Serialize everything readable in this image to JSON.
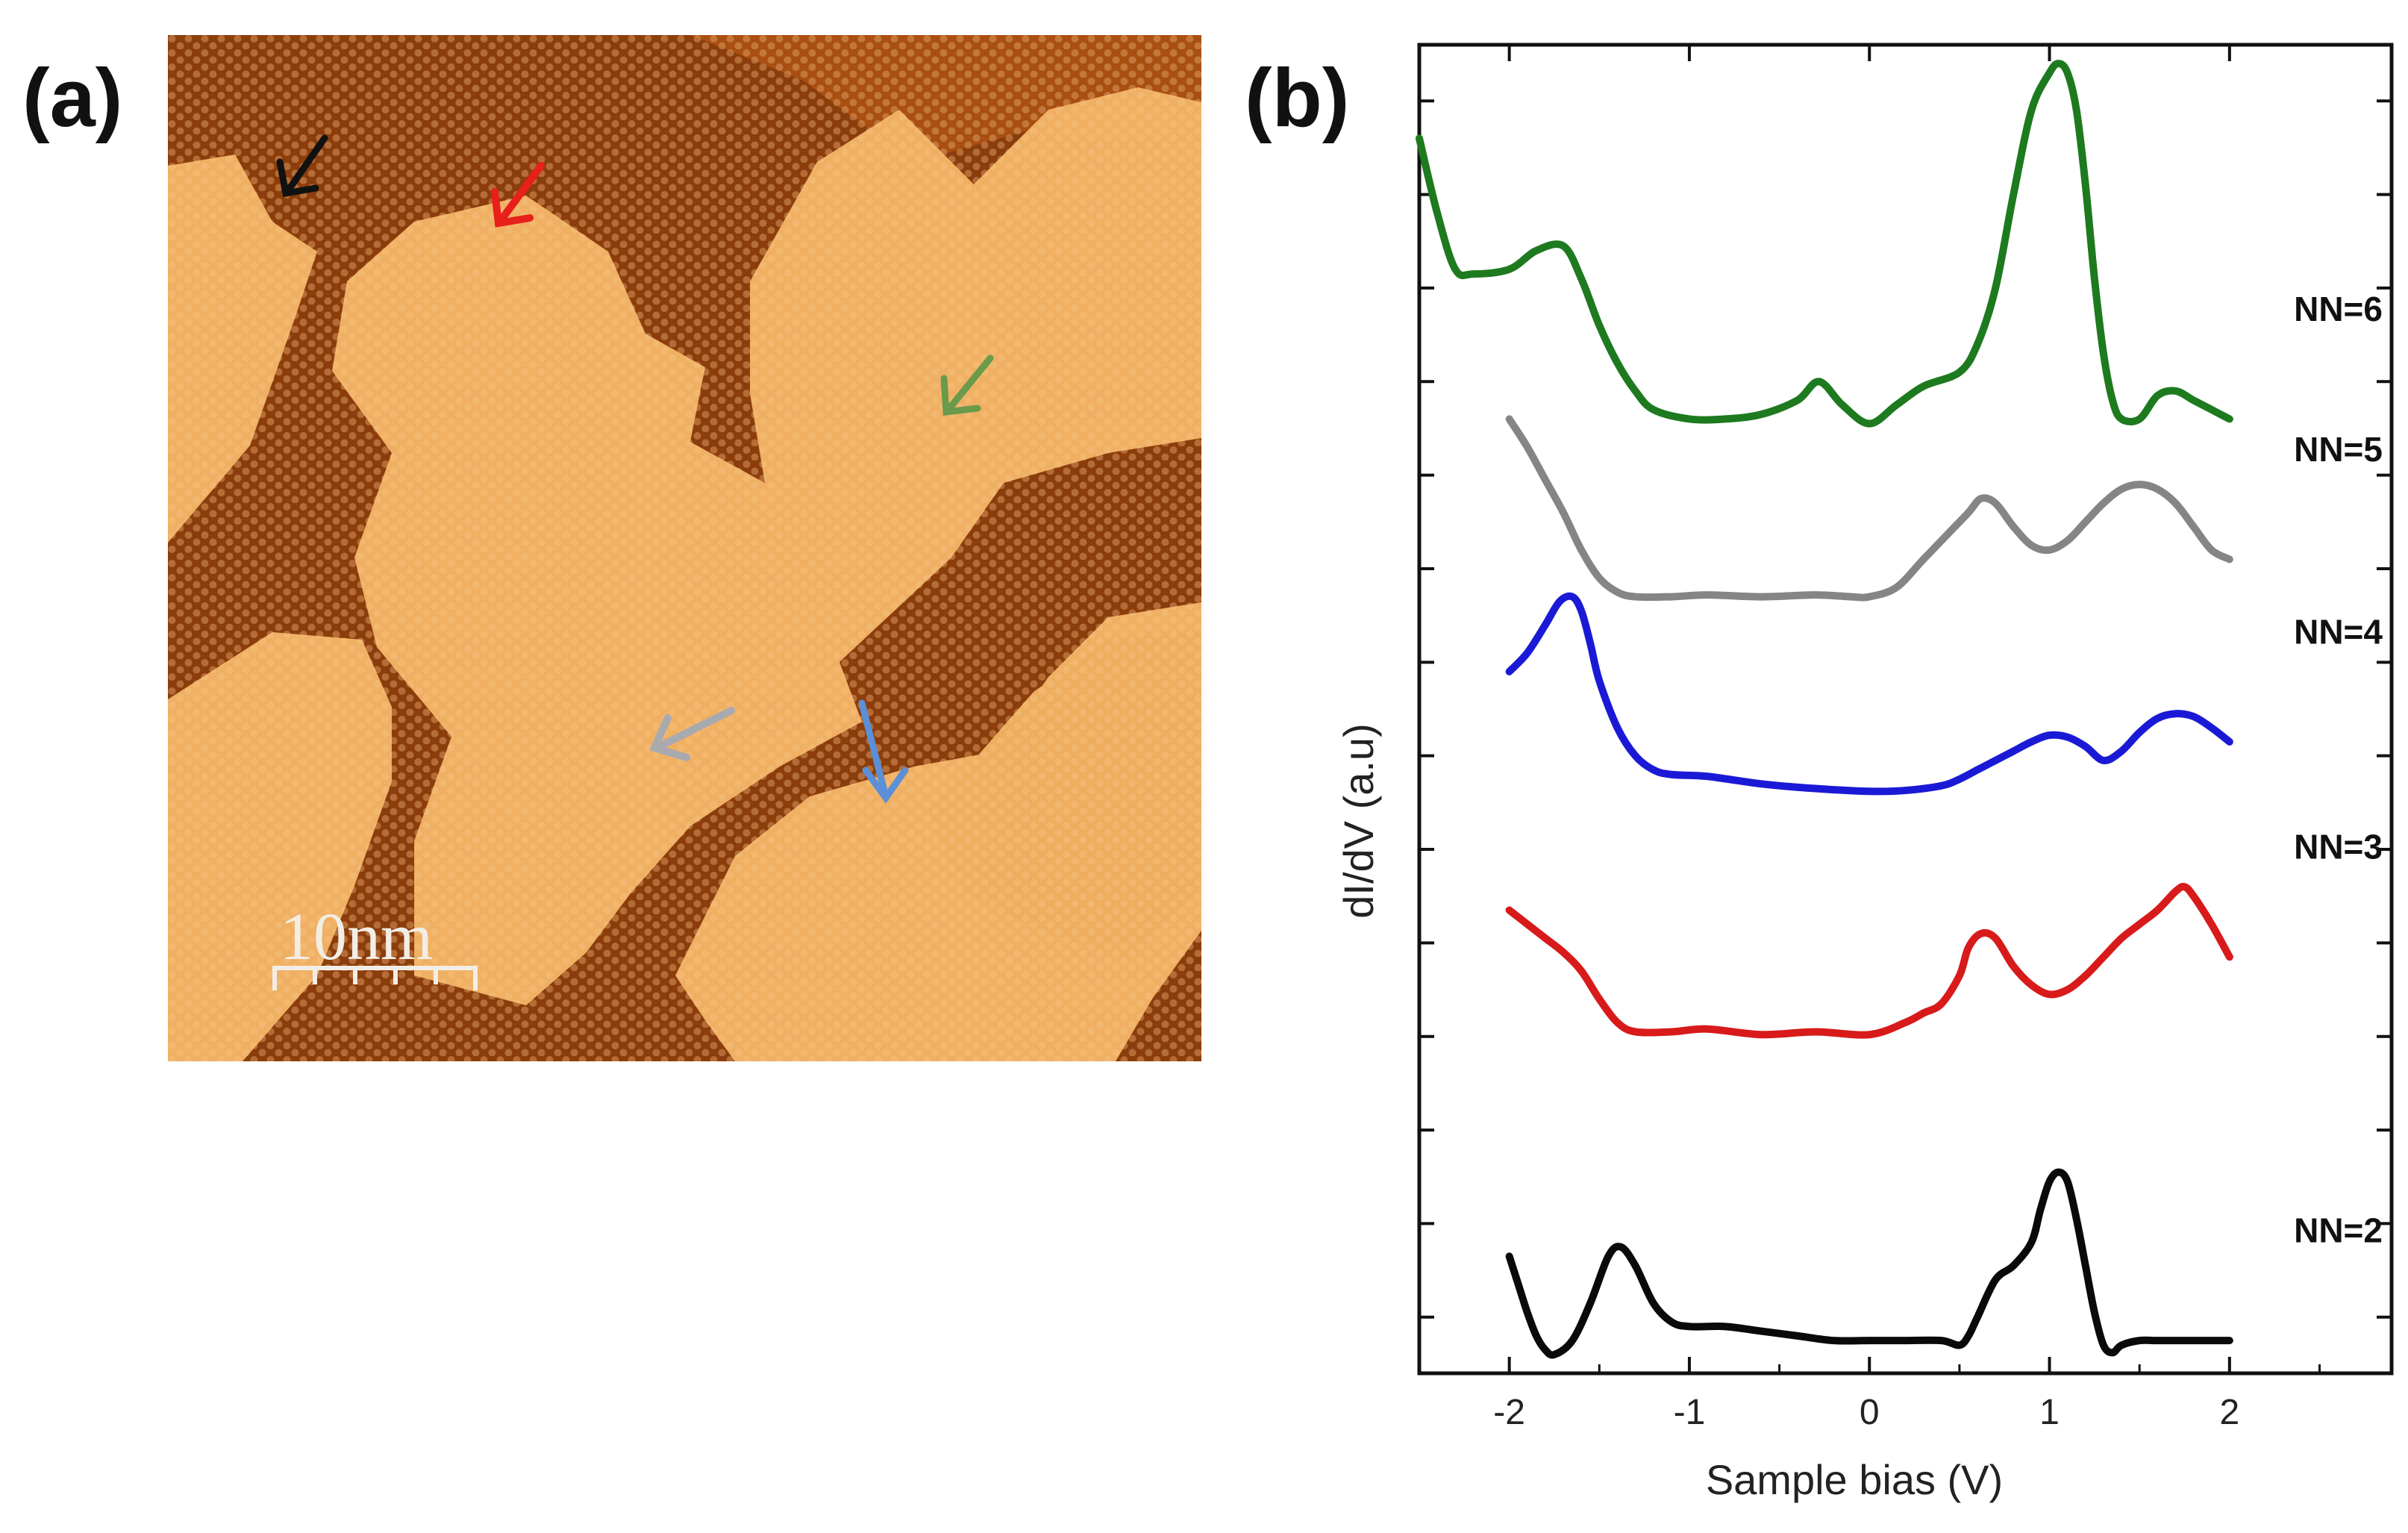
{
  "panels": {
    "a_label": "(a)",
    "b_label": "(b)"
  },
  "stm_image": {
    "scale_bar_label": "10nm",
    "arrow_colors": [
      "#111111",
      "#e8201a",
      "#6a9a4a",
      "#a9a9b0",
      "#5b8fd6"
    ]
  },
  "chart_data": {
    "type": "line",
    "xlabel": "Sample bias (V)",
    "ylabel": "dI/dV (a.u)",
    "xlim": [
      -2.5,
      2.9
    ],
    "x_ticks": [
      -2,
      -1,
      0,
      1,
      2
    ],
    "x_tick_labels": [
      "-2",
      "-1",
      "0",
      "1",
      "2"
    ],
    "y_ticks_hidden_labels": true,
    "legend": "inline-right",
    "series": [
      {
        "name": "NN=6",
        "color": "#1e7a1e",
        "x": [
          -2.5,
          -2.4,
          -2.3,
          -2.2,
          -2.0,
          -1.85,
          -1.7,
          -1.6,
          -1.5,
          -1.4,
          -1.3,
          -1.2,
          -1.0,
          -0.8,
          -0.6,
          -0.4,
          -0.28,
          -0.15,
          0.0,
          0.15,
          0.3,
          0.5,
          0.6,
          0.7,
          0.8,
          0.9,
          1.0,
          1.05,
          1.1,
          1.15,
          1.2,
          1.25,
          1.3,
          1.35,
          1.4,
          1.5,
          1.6,
          1.7,
          1.8,
          1.9,
          2.0
        ],
        "y": [
          10.6,
          9.8,
          9.2,
          9.15,
          9.2,
          9.4,
          9.45,
          9.1,
          8.6,
          8.2,
          7.9,
          7.7,
          7.6,
          7.6,
          7.65,
          7.8,
          8.0,
          7.75,
          7.55,
          7.75,
          7.95,
          8.1,
          8.4,
          9.0,
          10.0,
          10.9,
          11.3,
          11.4,
          11.3,
          10.9,
          10.1,
          9.1,
          8.3,
          7.8,
          7.6,
          7.6,
          7.85,
          7.9,
          7.8,
          7.7,
          7.6
        ]
      },
      {
        "name": "NN=5",
        "color": "#858585",
        "x": [
          -2.0,
          -1.9,
          -1.8,
          -1.7,
          -1.6,
          -1.5,
          -1.4,
          -1.3,
          -1.1,
          -0.9,
          -0.6,
          -0.3,
          -0.1,
          0.0,
          0.15,
          0.3,
          0.45,
          0.55,
          0.62,
          0.7,
          0.8,
          0.9,
          1.0,
          1.1,
          1.2,
          1.3,
          1.4,
          1.5,
          1.6,
          1.7,
          1.8,
          1.9,
          2.0
        ],
        "y": [
          7.6,
          7.3,
          6.95,
          6.6,
          6.2,
          5.9,
          5.75,
          5.7,
          5.7,
          5.72,
          5.7,
          5.72,
          5.7,
          5.7,
          5.8,
          6.1,
          6.4,
          6.6,
          6.75,
          6.7,
          6.45,
          6.25,
          6.2,
          6.3,
          6.5,
          6.7,
          6.85,
          6.9,
          6.85,
          6.7,
          6.45,
          6.2,
          6.1
        ]
      },
      {
        "name": "NN=4",
        "color": "#1a1ad6",
        "x": [
          -2.0,
          -1.9,
          -1.8,
          -1.72,
          -1.65,
          -1.6,
          -1.55,
          -1.5,
          -1.4,
          -1.3,
          -1.2,
          -1.1,
          -0.9,
          -0.6,
          -0.3,
          0.0,
          0.2,
          0.4,
          0.5,
          0.6,
          0.7,
          0.8,
          0.9,
          1.0,
          1.1,
          1.2,
          1.3,
          1.4,
          1.5,
          1.6,
          1.7,
          1.8,
          1.9,
          2.0
        ],
        "y": [
          4.9,
          5.1,
          5.4,
          5.65,
          5.7,
          5.55,
          5.2,
          4.8,
          4.3,
          4.0,
          3.85,
          3.8,
          3.78,
          3.7,
          3.65,
          3.62,
          3.63,
          3.68,
          3.75,
          3.85,
          3.95,
          4.05,
          4.15,
          4.22,
          4.2,
          4.1,
          3.95,
          4.05,
          4.25,
          4.4,
          4.45,
          4.42,
          4.3,
          4.15
        ]
      },
      {
        "name": "NN=3",
        "color": "#d81a1a",
        "x": [
          -2.0,
          -1.9,
          -1.8,
          -1.7,
          -1.6,
          -1.5,
          -1.4,
          -1.3,
          -1.1,
          -0.9,
          -0.6,
          -0.3,
          0.0,
          0.2,
          0.3,
          0.4,
          0.5,
          0.55,
          0.62,
          0.7,
          0.8,
          0.9,
          1.0,
          1.1,
          1.2,
          1.3,
          1.4,
          1.5,
          1.6,
          1.7,
          1.75,
          1.8,
          1.9,
          2.0
        ],
        "y": [
          2.35,
          2.2,
          2.05,
          1.9,
          1.7,
          1.4,
          1.15,
          1.05,
          1.05,
          1.08,
          1.02,
          1.05,
          1.02,
          1.15,
          1.25,
          1.35,
          1.65,
          1.95,
          2.1,
          2.05,
          1.75,
          1.55,
          1.45,
          1.5,
          1.65,
          1.85,
          2.05,
          2.2,
          2.35,
          2.55,
          2.6,
          2.5,
          2.2,
          1.85
        ]
      },
      {
        "name": "NN=2",
        "color": "#0a0a0a",
        "x": [
          -2.0,
          -1.95,
          -1.9,
          -1.85,
          -1.8,
          -1.75,
          -1.65,
          -1.55,
          -1.45,
          -1.38,
          -1.3,
          -1.2,
          -1.1,
          -1.0,
          -0.8,
          -0.6,
          -0.4,
          -0.2,
          0.0,
          0.2,
          0.4,
          0.5,
          0.55,
          0.6,
          0.7,
          0.8,
          0.9,
          0.95,
          1.0,
          1.05,
          1.1,
          1.15,
          1.2,
          1.25,
          1.3,
          1.35,
          1.4,
          1.5,
          1.6,
          1.8,
          2.0
        ],
        "y": [
          -1.35,
          -1.65,
          -1.95,
          -2.2,
          -2.35,
          -2.4,
          -2.25,
          -1.85,
          -1.35,
          -1.25,
          -1.45,
          -1.85,
          -2.05,
          -2.1,
          -2.1,
          -2.15,
          -2.2,
          -2.25,
          -2.25,
          -2.25,
          -2.25,
          -2.3,
          -2.2,
          -2.0,
          -1.6,
          -1.45,
          -1.2,
          -0.85,
          -0.55,
          -0.45,
          -0.55,
          -0.95,
          -1.45,
          -1.95,
          -2.3,
          -2.38,
          -2.3,
          -2.25,
          -2.25,
          -2.25,
          -2.25
        ]
      }
    ]
  }
}
